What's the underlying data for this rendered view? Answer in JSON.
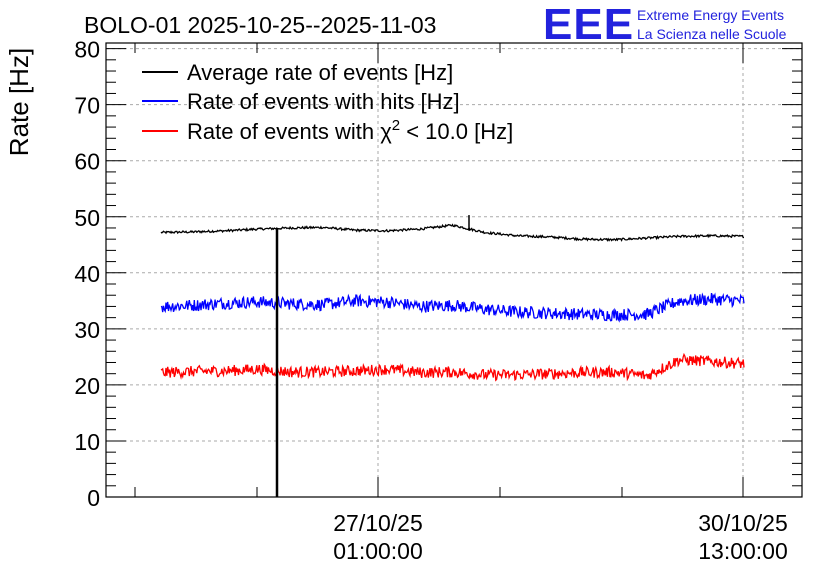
{
  "chart_data": {
    "type": "line",
    "title": "BOLO-01 2025-10-25--2025-11-03",
    "ylabel": "Rate [Hz]",
    "xlabel": "",
    "ylim": [
      0,
      81
    ],
    "y_ticks": [
      0,
      10,
      20,
      30,
      40,
      50,
      60,
      70,
      80
    ],
    "x_tick_labels": [
      {
        "date": "27/10/25",
        "time": "01:00:00"
      },
      {
        "date": "30/10/25",
        "time": "13:00:00"
      }
    ],
    "grid": true,
    "legend_position": "top-left",
    "series": [
      {
        "name": "Average rate of events [Hz]",
        "legend": {
          "prefix": "Average rate of events [Hz]",
          "sup": "",
          "suffix": ""
        },
        "color": "#000000",
        "approx_values": [
          47.2,
          47.3,
          47.5,
          47.8,
          48.0,
          48.1,
          47.6,
          47.5,
          47.8,
          48.5,
          47.2,
          46.6,
          46.4,
          46.0,
          45.9,
          46.2,
          46.5,
          46.6,
          46.5
        ],
        "noise": 0.4
      },
      {
        "name": "Rate of events with hits [Hz]",
        "legend": {
          "prefix": "Rate of events with hits [Hz]",
          "sup": "",
          "suffix": ""
        },
        "color": "#0000ff",
        "approx_values": [
          34.0,
          34.2,
          34.6,
          34.8,
          34.5,
          34.3,
          35.0,
          34.8,
          34.0,
          34.2,
          33.5,
          33.0,
          32.8,
          32.6,
          32.5,
          32.6,
          35.0,
          35.3,
          35.0
        ],
        "noise": 2.2
      },
      {
        "name": "Rate of events with χ² < 10.0 [Hz]",
        "legend": {
          "prefix": "Rate of events with χ",
          "sup": "2",
          "suffix": " < 10.0 [Hz]"
        },
        "color": "#ff0000",
        "approx_values": [
          22.2,
          22.4,
          22.5,
          22.8,
          22.3,
          22.3,
          22.5,
          22.8,
          22.2,
          22.3,
          21.8,
          21.8,
          22.0,
          22.2,
          22.3,
          21.6,
          24.5,
          24.2,
          23.8
        ],
        "noise": 2.0
      }
    ],
    "annotations": [
      "vertical black spike near 26/10/25 from 0 to ~48 Hz"
    ]
  },
  "logo": {
    "text": "EEE",
    "line1": "Extreme Energy Events",
    "line2": "La Scienza nelle Scuole",
    "color": "#2222dd"
  }
}
